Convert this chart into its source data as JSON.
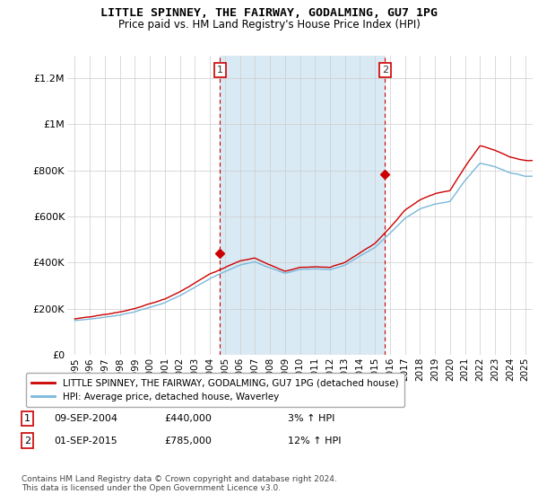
{
  "title": "LITTLE SPINNEY, THE FAIRWAY, GODALMING, GU7 1PG",
  "subtitle": "Price paid vs. HM Land Registry's House Price Index (HPI)",
  "legend_line1": "LITTLE SPINNEY, THE FAIRWAY, GODALMING, GU7 1PG (detached house)",
  "legend_line2": "HPI: Average price, detached house, Waverley",
  "annotation1": {
    "num": "1",
    "date": "09-SEP-2004",
    "price": "£440,000",
    "change": "3% ↑ HPI"
  },
  "annotation2": {
    "num": "2",
    "date": "01-SEP-2015",
    "price": "£785,000",
    "change": "12% ↑ HPI"
  },
  "footer": "Contains HM Land Registry data © Crown copyright and database right 2024.\nThis data is licensed under the Open Government Licence v3.0.",
  "hpi_color": "#7ab8d9",
  "price_color": "#cc0000",
  "sale_marker_color": "#cc0000",
  "shaded_color": "#daeaf5",
  "annotation_vline_color": "#cc0000",
  "background_color": "#ffffff",
  "ylim": [
    0,
    1300000
  ],
  "yticks": [
    0,
    200000,
    400000,
    600000,
    800000,
    1000000,
    1200000
  ],
  "ytick_labels": [
    "£0",
    "£200K",
    "£400K",
    "£600K",
    "£800K",
    "£1M",
    "£1.2M"
  ],
  "sale1_x": 2004.67,
  "sale1_y": 440000,
  "sale2_x": 2015.67,
  "sale2_y": 785000,
  "hpi_base_years": [
    1995,
    1996,
    1997,
    1998,
    1999,
    2000,
    2001,
    2002,
    2003,
    2004,
    2005,
    2006,
    2007,
    2008,
    2009,
    2010,
    2011,
    2012,
    2013,
    2014,
    2015,
    2016,
    2017,
    2018,
    2019,
    2020,
    2021,
    2022,
    2023,
    2024,
    2025
  ],
  "hpi_base_values": [
    148000,
    155000,
    163000,
    174000,
    188000,
    207000,
    228000,
    258000,
    293000,
    330000,
    360000,
    388000,
    405000,
    380000,
    355000,
    372000,
    375000,
    372000,
    392000,
    432000,
    468000,
    530000,
    595000,
    635000,
    658000,
    668000,
    760000,
    835000,
    820000,
    795000,
    780000
  ],
  "price_base_years": [
    1995,
    1996,
    1997,
    1998,
    1999,
    2000,
    2001,
    2002,
    2003,
    2004,
    2005,
    2006,
    2007,
    2008,
    2009,
    2010,
    2011,
    2012,
    2013,
    2014,
    2015,
    2016,
    2017,
    2018,
    2019,
    2020,
    2021,
    2022,
    2023,
    2024,
    2025
  ],
  "price_base_values": [
    155000,
    162000,
    171000,
    182000,
    197000,
    217000,
    238000,
    270000,
    308000,
    350000,
    378000,
    408000,
    422000,
    392000,
    365000,
    382000,
    385000,
    382000,
    405000,
    448000,
    490000,
    560000,
    635000,
    680000,
    706000,
    718000,
    820000,
    910000,
    890000,
    860000,
    845000
  ],
  "xlim_start": 1994.5,
  "xlim_end": 2025.5,
  "xtick_years": [
    1995,
    1996,
    1997,
    1998,
    1999,
    2000,
    2001,
    2002,
    2003,
    2004,
    2005,
    2006,
    2007,
    2008,
    2009,
    2010,
    2011,
    2012,
    2013,
    2014,
    2015,
    2016,
    2017,
    2018,
    2019,
    2020,
    2021,
    2022,
    2023,
    2024,
    2025
  ]
}
